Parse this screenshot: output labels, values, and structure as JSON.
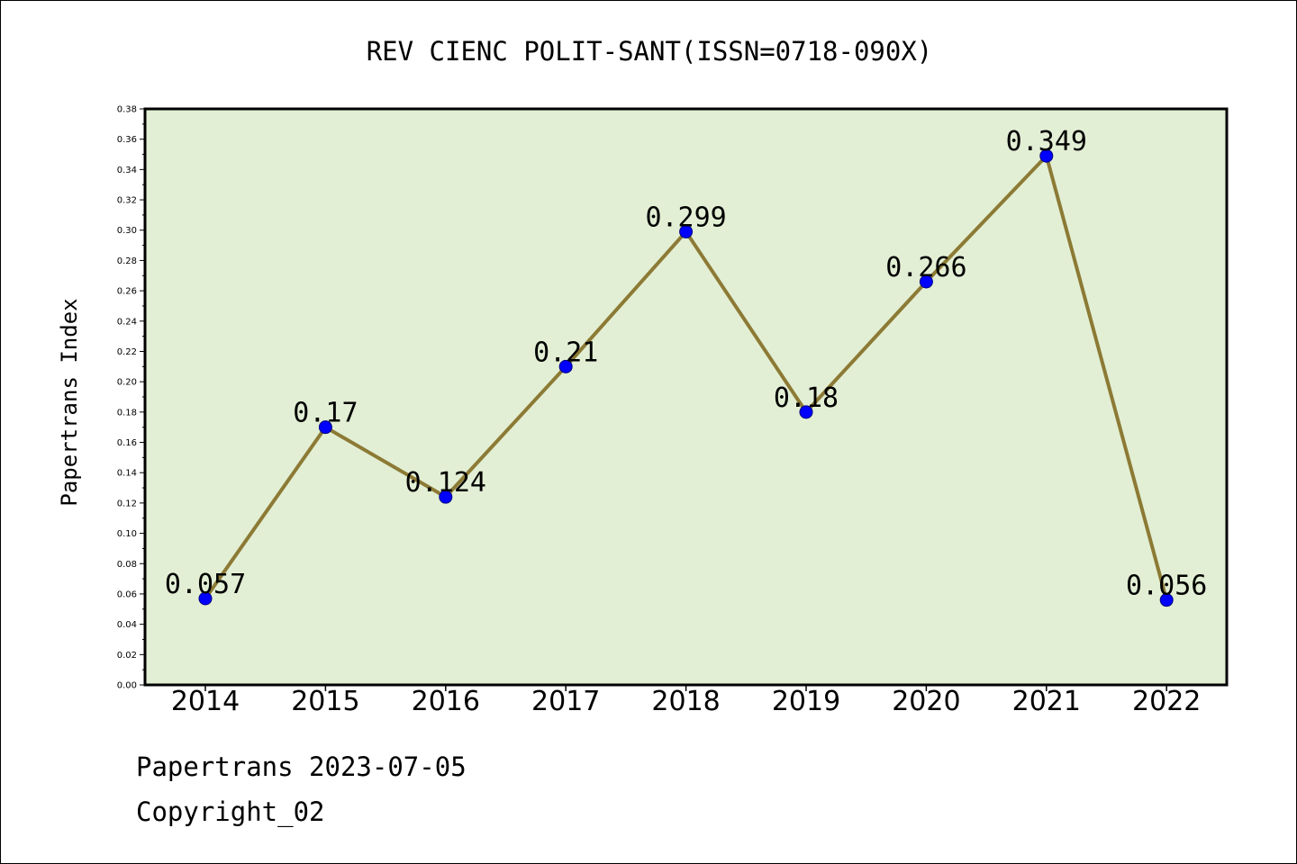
{
  "chart_data": {
    "type": "line",
    "title": "REV CIENC POLIT-SANT(ISSN=0718-090X)",
    "xlabel": "",
    "ylabel": "Papertrans Index",
    "categories": [
      "2014",
      "2015",
      "2016",
      "2017",
      "2018",
      "2019",
      "2020",
      "2021",
      "2022"
    ],
    "series": [
      {
        "values": [
          0.057,
          0.17,
          0.124,
          0.21,
          0.299,
          0.18,
          0.266,
          0.349,
          0.056
        ],
        "data_labels": [
          "0.057",
          "0.17",
          "0.124",
          "0.21",
          "0.299",
          "0.18",
          "0.266",
          "0.349",
          "0.056"
        ]
      }
    ],
    "ylim": [
      0,
      0.38
    ],
    "yticks": [
      "0.00",
      "0.02",
      "0.04",
      "0.06",
      "0.08",
      "0.10",
      "0.12",
      "0.14",
      "0.16",
      "0.18",
      "0.20",
      "0.22",
      "0.24",
      "0.26",
      "0.28",
      "0.30",
      "0.32",
      "0.34",
      "0.36",
      "0.38"
    ],
    "grid": false,
    "legend": "none",
    "colors": {
      "plot_background": "#e2efd4",
      "line": "#8c7a35",
      "marker_fill": "#0000ff",
      "marker_edge": "#000080"
    }
  },
  "footer": {
    "line1": "Papertrans 2023-07-05",
    "line2": "Copyright_02"
  }
}
